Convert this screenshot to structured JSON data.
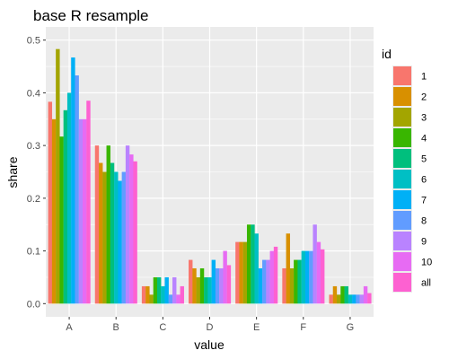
{
  "chart_data": {
    "type": "bar",
    "title": "base R resample",
    "xlabel": "value",
    "ylabel": "share",
    "ylim": [
      -0.025,
      0.525
    ],
    "yticks": [
      0.0,
      0.1,
      0.2,
      0.3,
      0.4,
      0.5
    ],
    "ytick_labels": [
      "0.0",
      "0.1",
      "0.2",
      "0.3",
      "0.4",
      "0.5"
    ],
    "grid": true,
    "legend_position": "right",
    "legend_title": "id",
    "categories": [
      "A",
      "B",
      "C",
      "D",
      "E",
      "F",
      "G"
    ],
    "series": [
      {
        "name": "1",
        "color": "#F8766D",
        "values": [
          0.383,
          0.3,
          0.033,
          0.083,
          0.117,
          0.067,
          0.017
        ]
      },
      {
        "name": "2",
        "color": "#D89000",
        "values": [
          0.35,
          0.267,
          0.033,
          0.067,
          0.117,
          0.133,
          0.033
        ]
      },
      {
        "name": "3",
        "color": "#A3A500",
        "values": [
          0.483,
          0.25,
          0.017,
          0.05,
          0.117,
          0.067,
          0.017
        ]
      },
      {
        "name": "4",
        "color": "#39B600",
        "values": [
          0.317,
          0.3,
          0.05,
          0.067,
          0.15,
          0.083,
          0.033
        ]
      },
      {
        "name": "5",
        "color": "#00BF7D",
        "values": [
          0.367,
          0.267,
          0.05,
          0.05,
          0.15,
          0.083,
          0.033
        ]
      },
      {
        "name": "6",
        "color": "#00BFC4",
        "values": [
          0.4,
          0.25,
          0.033,
          0.05,
          0.133,
          0.1,
          0.017
        ]
      },
      {
        "name": "7",
        "color": "#00B0F6",
        "values": [
          0.467,
          0.233,
          0.05,
          0.083,
          0.067,
          0.1,
          0.017
        ]
      },
      {
        "name": "8",
        "color": "#619CFF",
        "values": [
          0.433,
          0.25,
          0.017,
          0.067,
          0.083,
          0.1,
          0.017
        ]
      },
      {
        "name": "9",
        "color": "#B983FF",
        "values": [
          0.35,
          0.3,
          0.05,
          0.067,
          0.083,
          0.15,
          0.017
        ]
      },
      {
        "name": "10",
        "color": "#E76BF3",
        "values": [
          0.35,
          0.283,
          0.017,
          0.1,
          0.1,
          0.117,
          0.033
        ]
      },
      {
        "name": "all",
        "color": "#FD61D1",
        "values": [
          0.385,
          0.27,
          0.033,
          0.073,
          0.108,
          0.103,
          0.02
        ]
      }
    ]
  }
}
